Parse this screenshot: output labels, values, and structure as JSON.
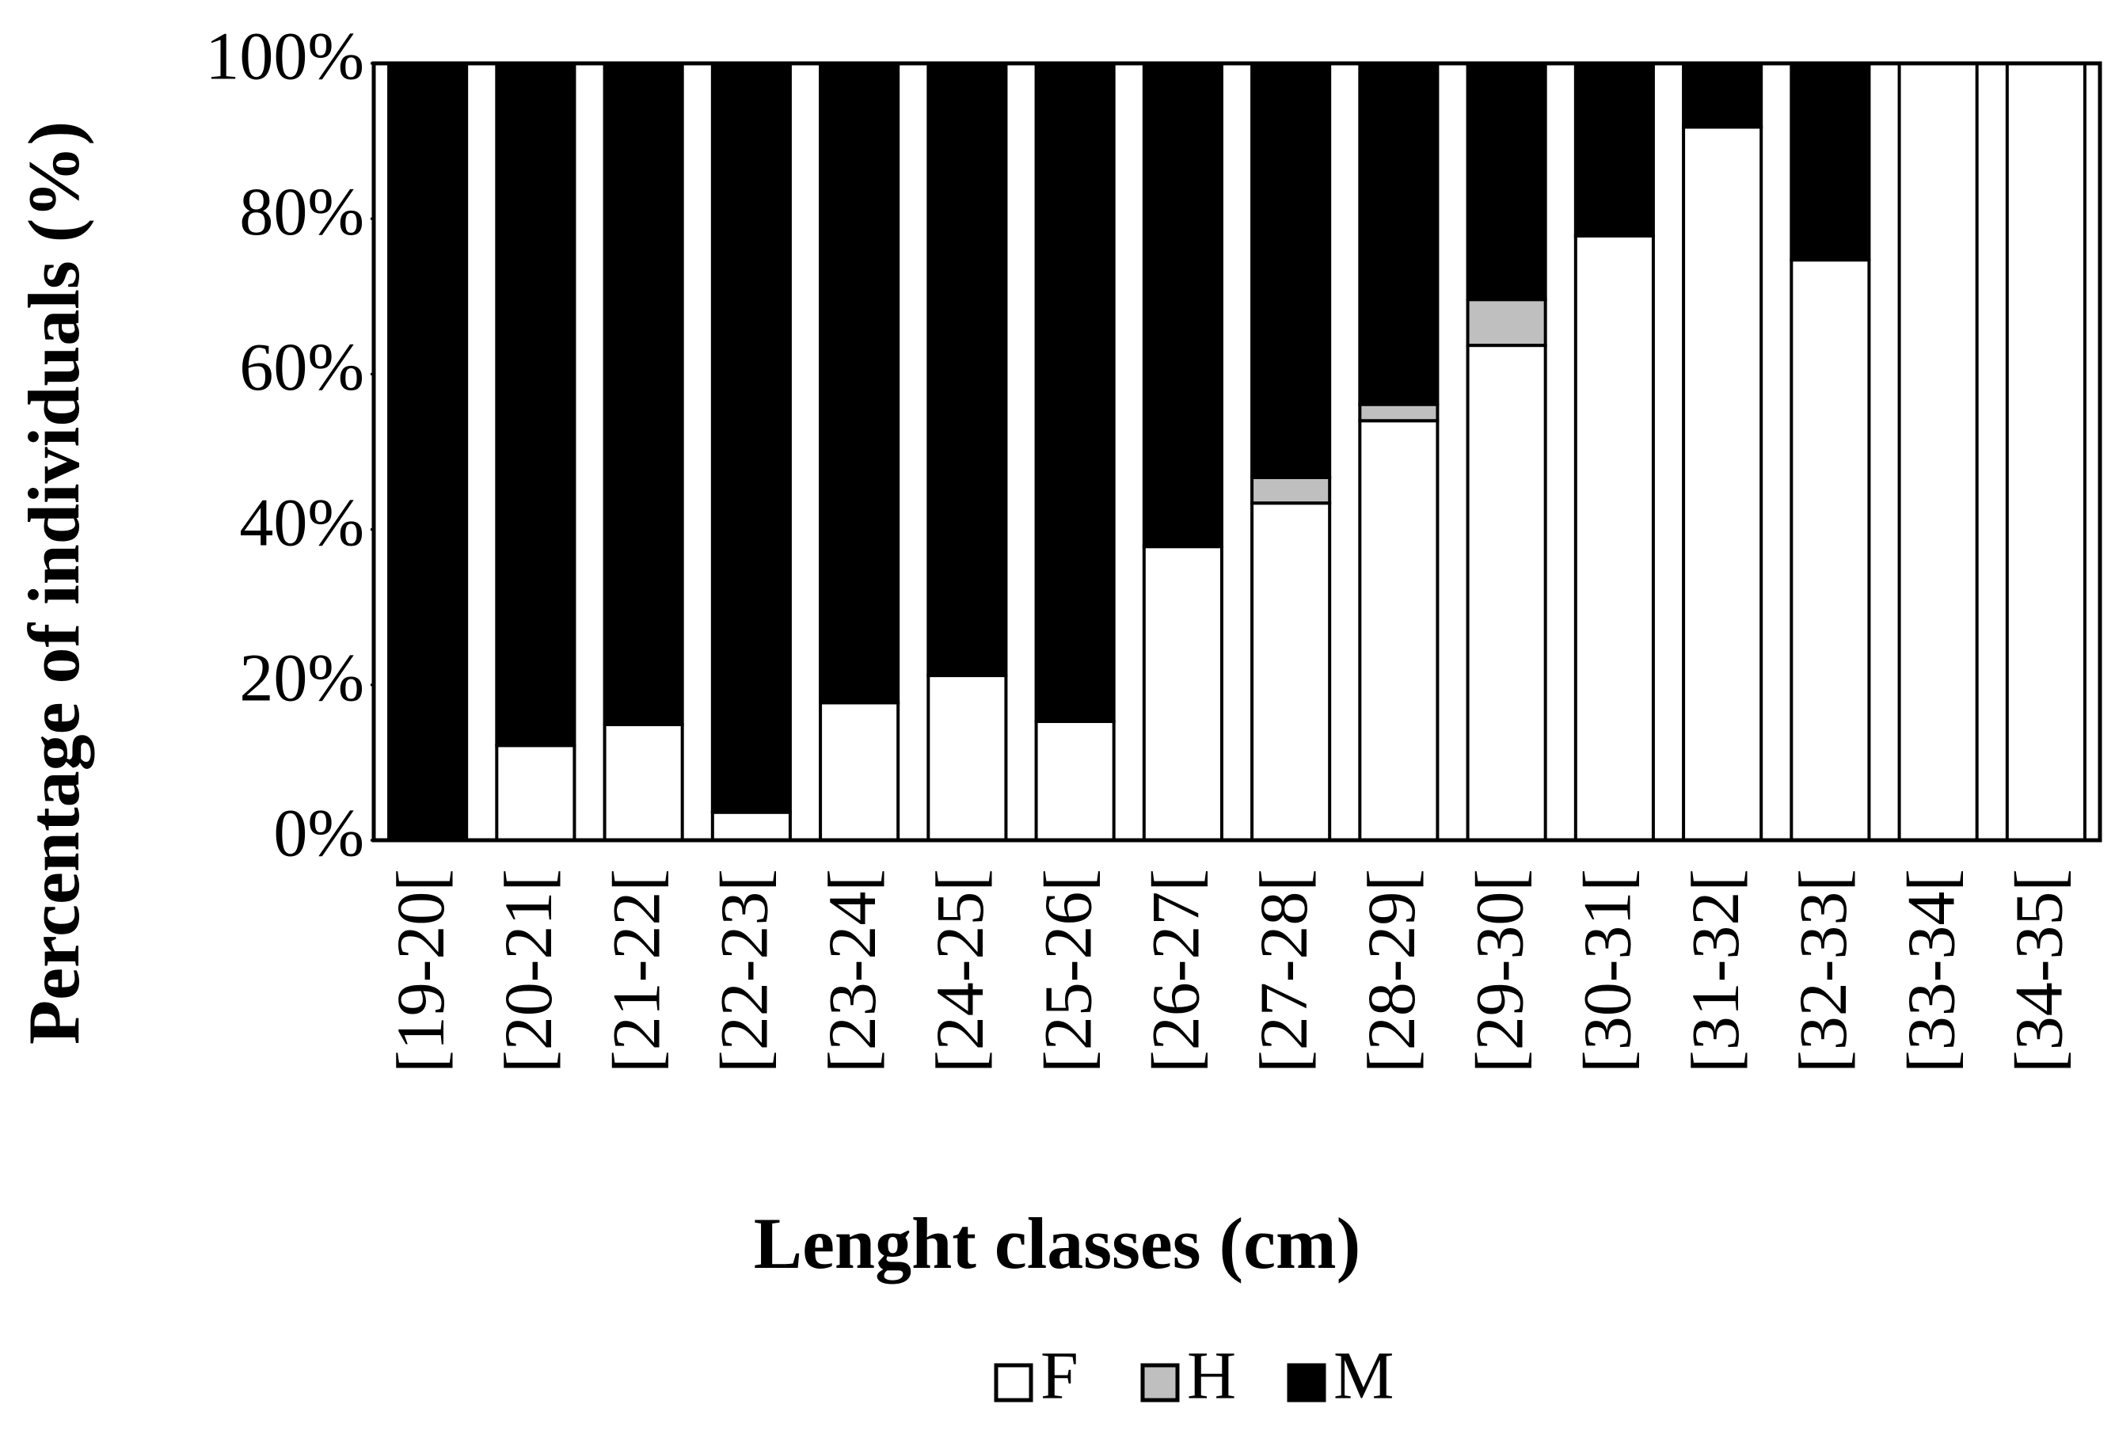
{
  "chart_data": {
    "type": "stacked_bar",
    "y_label": "Percentage of individuals (%)",
    "x_label": "Lenght classes (cm)",
    "categories": [
      "[19-20[",
      "[20-21[",
      "[21-22[",
      "[22-23[",
      "[23-24[",
      "[24-25[",
      "[25-26[",
      "[26-27[",
      "[27-28[",
      "[28-29[",
      "[29-30[",
      "[30-31[",
      "[31-32[",
      "[32-33[",
      "[33-34[",
      "[34-35["
    ],
    "series": [
      {
        "name": "F",
        "color": "#ffffff",
        "values": [
          0,
          12.2,
          14.9,
          3.6,
          17.7,
          21.2,
          15.3,
          37.8,
          43.4,
          54,
          63.7,
          77.8,
          91.8,
          74.7,
          100,
          100
        ]
      },
      {
        "name": "H",
        "color": "#bfbfbf",
        "values": [
          0,
          0,
          0,
          0,
          0,
          0,
          0,
          0,
          3.3,
          2.1,
          5.9,
          0,
          0,
          0,
          0,
          0
        ]
      },
      {
        "name": "M",
        "color": "#000000",
        "values": [
          100,
          87.8,
          85.1,
          96.4,
          82.3,
          78.8,
          84.7,
          62.2,
          53.3,
          43.9,
          30.4,
          22.2,
          8.2,
          25.3,
          0,
          0
        ]
      }
    ],
    "ylim": [
      0,
      100
    ],
    "yticks": [
      {
        "value": 0,
        "label": "0%"
      },
      {
        "value": 20,
        "label": "20%"
      },
      {
        "value": 40,
        "label": "40%"
      },
      {
        "value": 60,
        "label": "60%"
      },
      {
        "value": 80,
        "label": "80%"
      },
      {
        "value": 100,
        "label": "100%"
      }
    ]
  }
}
